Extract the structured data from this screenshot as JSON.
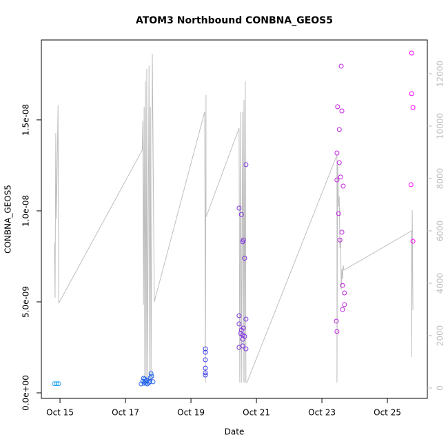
{
  "chart_data": {
    "type": "scatter",
    "title": "ATOM3 Northbound CONBNA_GEOS5",
    "xlabel": "Date",
    "ylabel": "CONBNA_GEOS5",
    "xlim": [
      14.43,
      26.22
    ],
    "xticks": [
      {
        "value": 15,
        "label": "Oct 15"
      },
      {
        "value": 17,
        "label": "Oct 17"
      },
      {
        "value": 19,
        "label": "Oct 19"
      },
      {
        "value": 21,
        "label": "Oct 21"
      },
      {
        "value": 23,
        "label": "Oct 23"
      },
      {
        "value": 25,
        "label": "Oct 25"
      }
    ],
    "ylim": [
      -3.03e-10,
      1.939e-08
    ],
    "yticks": [
      {
        "value": 0,
        "label": "0.0e+00"
      },
      {
        "value": 5e-09,
        "label": "5.0e-09"
      },
      {
        "value": 1e-08,
        "label": "1.0e-08"
      },
      {
        "value": 1.5e-08,
        "label": "1.5e-08"
      }
    ],
    "y2lim": [
      -395,
      13289
    ],
    "y2ticks": [
      0,
      2000,
      4000,
      6000,
      8000,
      10000,
      12000
    ],
    "y2color": "#bebebe",
    "series": [
      {
        "type": "scatter",
        "x": [
          14.83,
          14.9,
          14.96,
          17.48,
          17.53,
          17.55,
          17.57,
          17.59,
          17.61,
          17.63,
          17.65,
          17.67,
          17.72,
          17.74,
          17.76,
          17.78,
          17.8,
          17.84,
          19.44,
          19.44,
          19.44,
          19.44,
          19.44,
          19.44,
          20.47,
          20.54,
          20.58,
          20.6,
          20.64,
          20.68,
          20.47,
          20.47,
          20.54,
          20.52,
          20.58,
          20.6,
          20.58,
          20.64,
          20.68,
          20.58,
          20.68,
          20.47,
          23.46,
          23.46,
          23.48,
          23.53,
          23.53,
          23.57,
          23.65,
          23.59,
          23.61,
          23.51,
          23.55,
          23.61,
          23.63,
          23.69,
          23.69,
          23.63,
          23.44,
          23.46,
          25.74,
          25.74,
          25.78,
          25.72,
          25.78
        ],
        "values": [
          5e-10,
          5e-10,
          5e-10,
          4.9e-10,
          6.4e-10,
          8e-10,
          5.3e-10,
          7.6e-10,
          6.4e-10,
          5.3e-10,
          6.8e-10,
          4.9e-10,
          5.7e-10,
          6.4e-10,
          8.3e-10,
          1.06e-09,
          9.1e-10,
          6.1e-10,
          2.42e-09,
          2.23e-09,
          1.82e-09,
          1.36e-09,
          1.1e-09,
          9.8e-10,
          1.015e-08,
          9.8e-09,
          8.3e-09,
          8.4e-09,
          7.4e-09,
          1.254e-08,
          4.24e-09,
          3.79e-09,
          3.45e-09,
          3.26e-09,
          3.18e-09,
          3.56e-09,
          2.95e-09,
          3.1e-09,
          4.05e-09,
          2.58e-09,
          2.42e-09,
          2.5e-09,
          1.318e-08,
          1.17e-08,
          1.572e-08,
          1.447e-08,
          1.265e-08,
          1.186e-08,
          1.136e-08,
          1.795e-08,
          1.549e-08,
          9.85e-09,
          8.4e-09,
          8.83e-09,
          5.9e-09,
          5.49e-09,
          4.85e-09,
          4.58e-09,
          3.94e-09,
          3.37e-09,
          1.867e-08,
          1.644e-08,
          1.568e-08,
          1.144e-08,
          8.33e-09
        ],
        "colors": [
          "#1ea0f0",
          "#1ea0f0",
          "#1ea0f0",
          "#2060f0",
          "#2060f0",
          "#2060f0",
          "#2060f0",
          "#2060f0",
          "#2060f0",
          "#2060f0",
          "#2060f0",
          "#2060f0",
          "#2060f0",
          "#2060f0",
          "#2060f0",
          "#2060f0",
          "#2060f0",
          "#2060f0",
          "#3a3af0",
          "#3a3af0",
          "#3a3af0",
          "#3a3af0",
          "#3a3af0",
          "#3a3af0",
          "#8030e0",
          "#8030e0",
          "#8030e0",
          "#8030e0",
          "#8030e0",
          "#8030e0",
          "#8030e0",
          "#8030e0",
          "#8030e0",
          "#8030e0",
          "#8030e0",
          "#8030e0",
          "#8030e0",
          "#8030e0",
          "#8030e0",
          "#8030e0",
          "#8030e0",
          "#8030e0",
          "#c020e0",
          "#c020e0",
          "#c020e0",
          "#c020e0",
          "#c020e0",
          "#c020e0",
          "#c020e0",
          "#c020e0",
          "#c020e0",
          "#c020e0",
          "#c020e0",
          "#c020e0",
          "#c020e0",
          "#c020e0",
          "#c020e0",
          "#c020e0",
          "#c020e0",
          "#c020e0",
          "#ff00ff",
          "#ff00ff",
          "#ff00ff",
          "#ff00ff",
          "#ff00ff"
        ]
      },
      {
        "type": "line",
        "axis": "y2",
        "color": "#bebebe",
        "x": [
          14.83,
          14.85,
          14.87,
          14.89,
          14.94,
          14.96,
          17.51,
          17.53,
          17.55,
          17.57,
          17.59,
          17.61,
          17.63,
          17.65,
          17.67,
          17.72,
          17.74,
          17.76,
          17.78,
          17.82,
          17.88,
          19.42,
          19.44,
          19.46,
          19.46,
          20.47,
          20.49,
          20.52,
          20.54,
          20.58,
          20.6,
          20.62,
          20.64,
          20.66,
          20.68,
          20.71,
          23.46,
          23.46,
          23.48,
          23.51,
          23.53,
          23.55,
          23.57,
          23.59,
          23.61,
          23.63,
          23.65,
          23.67,
          25.74,
          25.74,
          25.76,
          25.78
        ],
        "values": [
          5553,
          3447,
          9737,
          6447,
          10789,
          3237,
          9079,
          10211,
          3184,
          10737,
          211,
          11711,
          211,
          12184,
          211,
          12316,
          211,
          10737,
          211,
          12763,
          3289,
          10553,
          211,
          11184,
          6526,
          9921,
          211,
          10553,
          211,
          10553,
          211,
          11000,
          211,
          11711,
          211,
          211,
          8895,
          211,
          8500,
          6921,
          7316,
          5342,
          5737,
          3763,
          4553,
          4158,
          4684,
          4500,
          6000,
          1184,
          6789,
          2974
        ]
      }
    ]
  }
}
